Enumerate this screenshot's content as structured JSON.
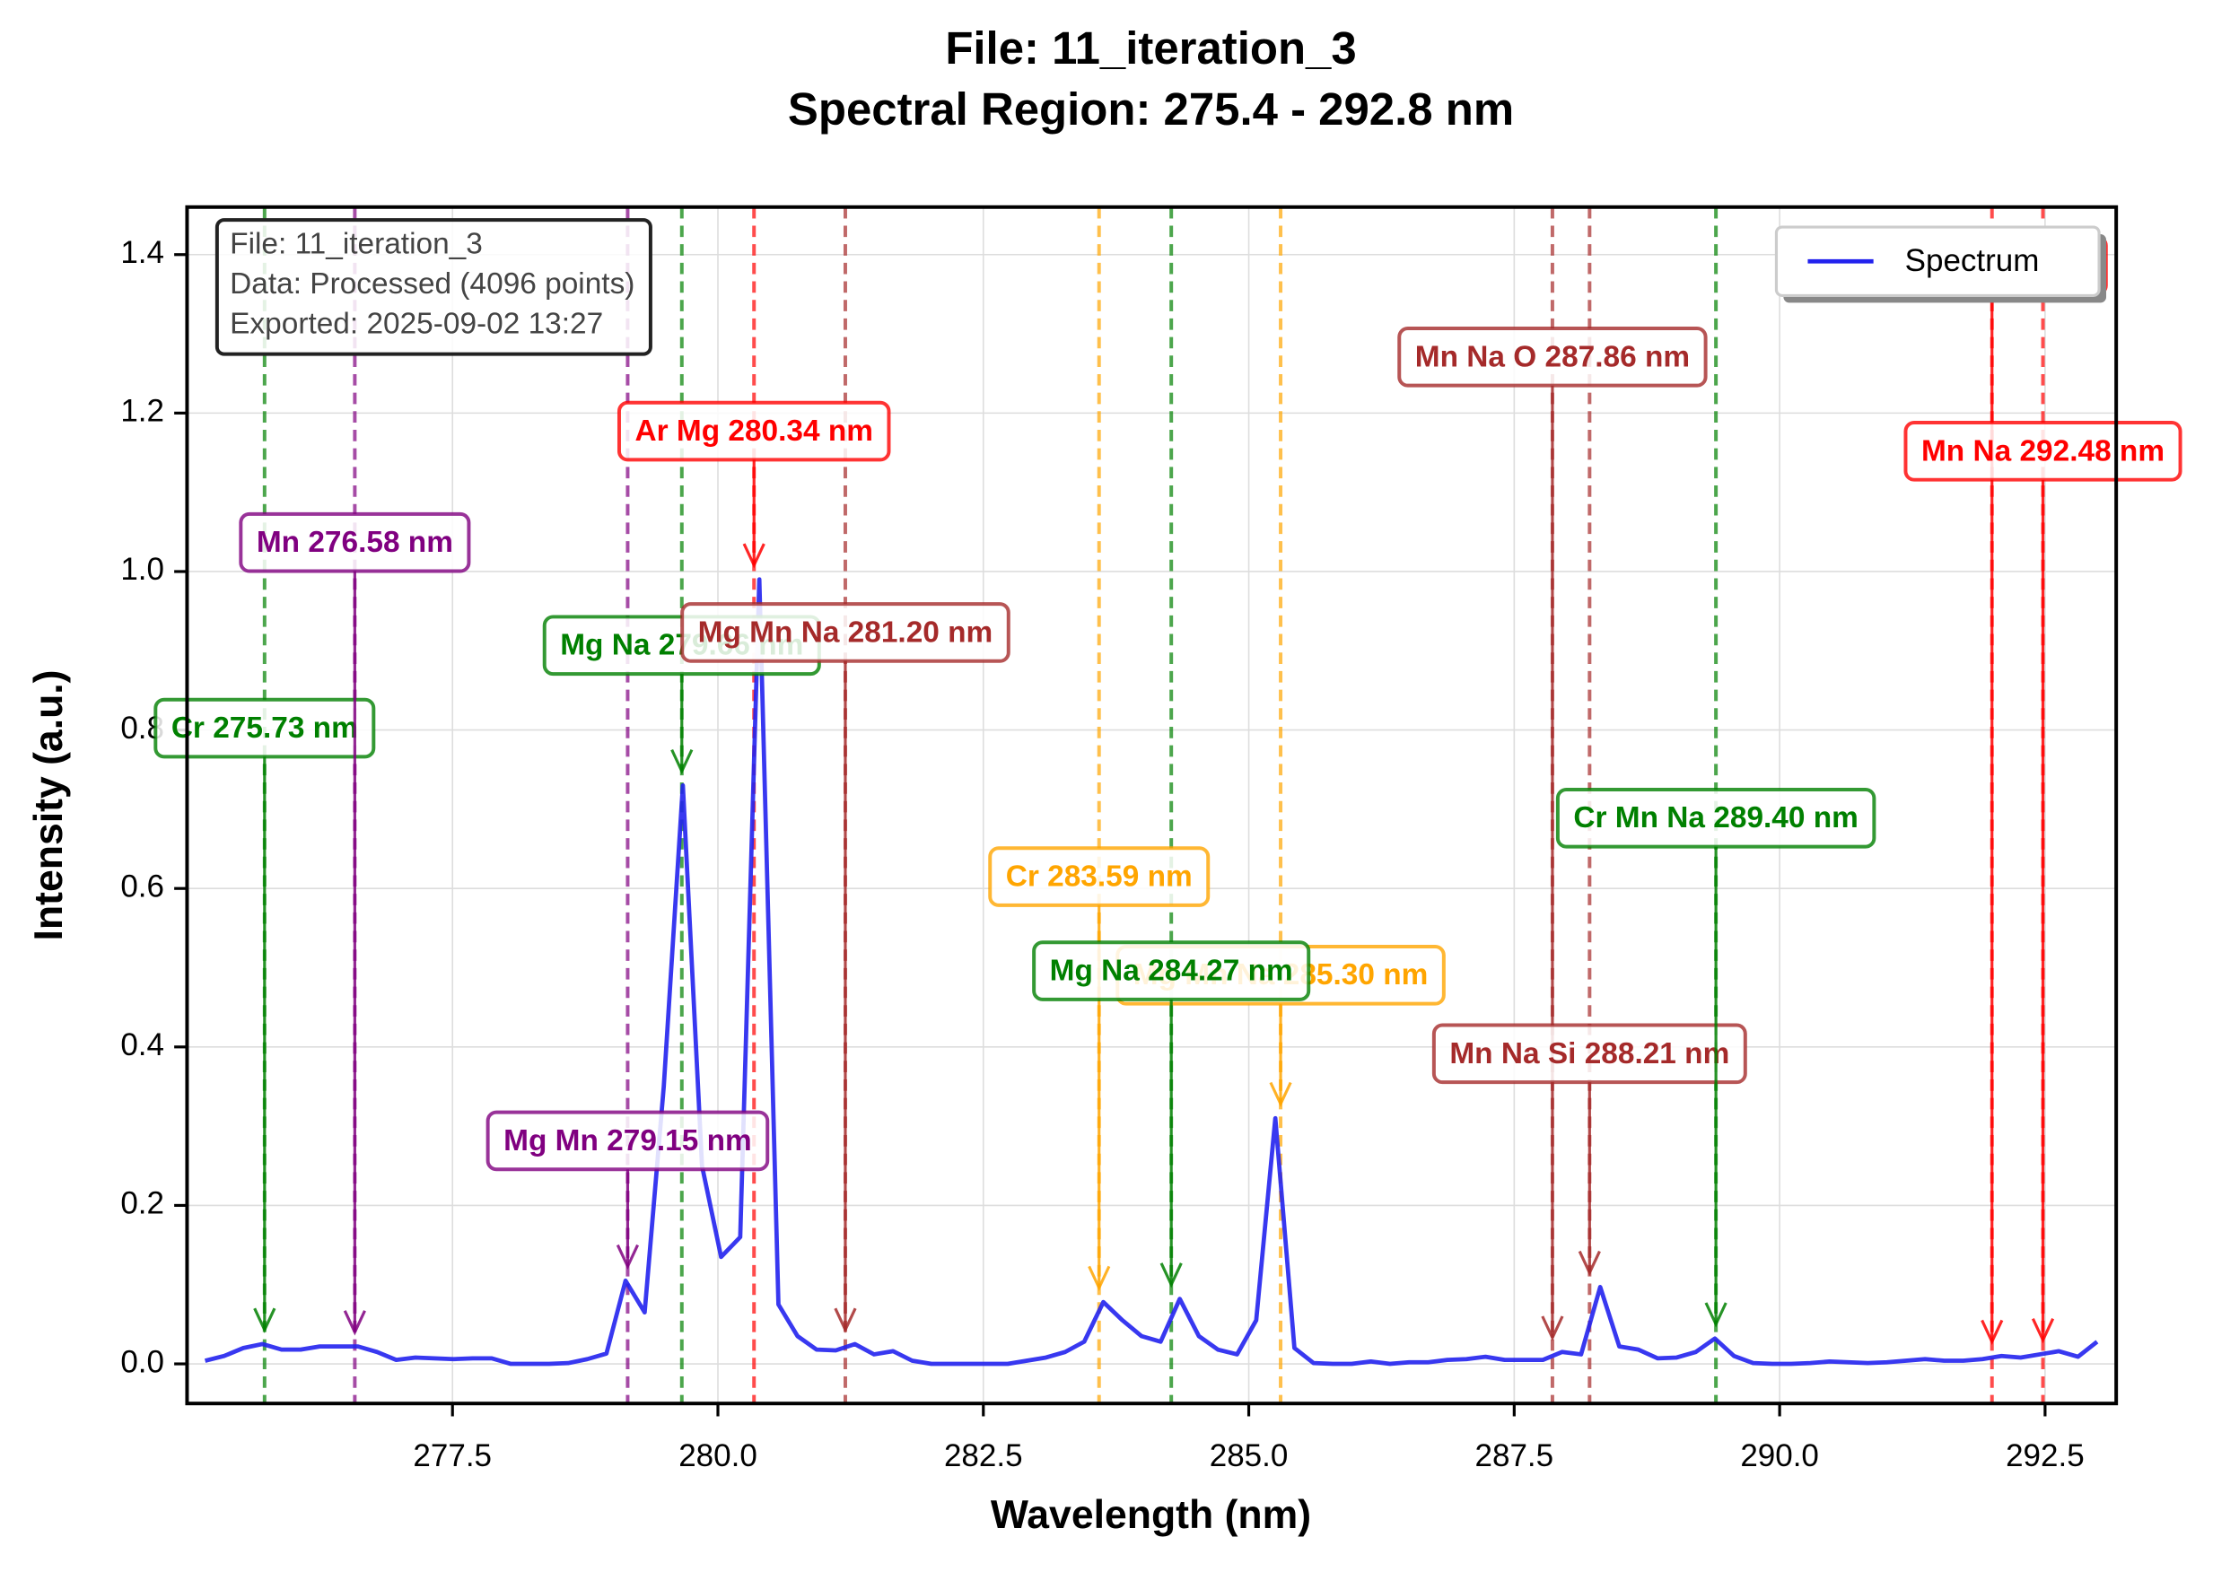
{
  "chart_data": {
    "type": "line",
    "title": "File: 11_iteration_3",
    "subtitle": "Spectral Region: 275.4 - 292.8 nm",
    "xlabel": "Wavelength (nm)",
    "ylabel": "Intensity (a.u.)",
    "xlim": [
      275.0,
      293.17
    ],
    "ylim": [
      -0.05,
      1.46
    ],
    "xticks": [
      277.5,
      {
        "value": 280,
        "label": "280.0"
      },
      282.5,
      {
        "value": 285,
        "label": "285.0"
      },
      287.5,
      {
        "value": 290,
        "label": "290.0"
      },
      292.5
    ],
    "yticks": [
      {
        "value": 0,
        "label": "0.0"
      },
      0.2,
      0.4,
      0.6,
      0.8,
      {
        "value": 1,
        "label": "1.0"
      },
      1.2,
      1.4
    ],
    "grid": true,
    "legend": "upper right",
    "x": [
      275.17,
      275.35,
      275.53,
      275.71,
      275.89,
      276.07,
      276.25,
      276.43,
      276.61,
      276.79,
      276.97,
      277.15,
      277.33,
      277.51,
      277.69,
      277.87,
      278.05,
      278.23,
      278.41,
      278.59,
      278.77,
      278.95,
      279.13,
      279.31,
      279.49,
      279.67,
      279.85,
      280.03,
      280.21,
      280.39,
      280.57,
      280.75,
      280.93,
      281.11,
      281.29,
      281.47,
      281.65,
      281.83,
      282.01,
      282.19,
      282.37,
      282.55,
      282.73,
      282.91,
      283.09,
      283.27,
      283.45,
      283.63,
      283.81,
      283.99,
      284.17,
      284.35,
      284.53,
      284.71,
      284.89,
      285.07,
      285.25,
      285.43,
      285.61,
      285.79,
      285.97,
      286.15,
      286.33,
      286.51,
      286.69,
      286.87,
      287.05,
      287.23,
      287.41,
      287.59,
      287.77,
      287.95,
      288.13,
      288.31,
      288.49,
      288.67,
      288.85,
      289.03,
      289.21,
      289.39,
      289.57,
      289.75,
      289.93,
      290.11,
      290.29,
      290.47,
      290.65,
      290.83,
      291.01,
      291.19,
      291.37,
      291.55,
      291.73,
      291.91,
      292.09,
      292.27,
      292.45,
      292.63,
      292.81,
      292.99
    ],
    "series": [
      {
        "name": "Spectrum",
        "color": "#2222ee",
        "values": [
          0.004,
          0.01,
          0.02,
          0.025,
          0.018,
          0.018,
          0.022,
          0.022,
          0.022,
          0.015,
          0.005,
          0.008,
          0.007,
          0.006,
          0.007,
          0.007,
          0,
          0,
          0,
          0.001,
          0.006,
          0.013,
          0.105,
          0.065,
          0.35,
          0.73,
          0.25,
          0.135,
          0.16,
          0.99,
          0.075,
          0.035,
          0.018,
          0.017,
          0.025,
          0.012,
          0.016,
          0.004,
          0,
          0,
          0,
          0,
          0,
          0.004,
          0.008,
          0.015,
          0.028,
          0.078,
          0.055,
          0.035,
          0.028,
          0.082,
          0.035,
          0.018,
          0.012,
          0.055,
          0.31,
          0.02,
          0.001,
          0,
          0,
          0.003,
          0,
          0.002,
          0.002,
          0.005,
          0.006,
          0.009,
          0.005,
          0.005,
          0.005,
          0.015,
          0.012,
          0.097,
          0.022,
          0.018,
          0.007,
          0.008,
          0.015,
          0.032,
          0.01,
          0.001,
          0,
          0,
          0.001,
          0.003,
          0.002,
          0.001,
          0.002,
          0.004,
          0.006,
          0.004,
          0.004,
          0.006,
          0.01,
          0.008,
          0.012,
          0.016,
          0.009,
          0.028
        ]
      }
    ],
    "annotations": [
      {
        "text": "Cr 275.73 nm",
        "x": 275.73,
        "color": "#008000"
      },
      {
        "text": "Mn 276.58 nm",
        "x": 276.58,
        "color": "#800080"
      },
      {
        "text": "Mg Mn 279.15 nm",
        "x": 279.15,
        "color": "#800080"
      },
      {
        "text": "Mg Na 279.66 nm",
        "x": 279.66,
        "color": "#008000"
      },
      {
        "text": "Ar Mg 280.34 nm",
        "x": 280.34,
        "color": "#ff0000"
      },
      {
        "text": "Mg Mn Na 281.20 nm",
        "x": 281.2,
        "color": "#a52a2a"
      },
      {
        "text": "Cr 283.59 nm",
        "x": 283.59,
        "color": "#ffa500"
      },
      {
        "text": "Mg Mn Na 285.30 nm",
        "x": 285.3,
        "color": "#ffa500"
      },
      {
        "text": "Mg Na 284.27 nm",
        "x": 284.27,
        "color": "#008000"
      },
      {
        "text": "Mn Na O 287.86 nm",
        "x": 287.86,
        "color": "#a52a2a"
      },
      {
        "text": "Mn Na Si 288.21 nm",
        "x": 288.21,
        "color": "#a52a2a"
      },
      {
        "text": "Cr Mn Na 289.40 nm",
        "x": 289.4,
        "color": "#008000"
      },
      {
        "text": "Mn 292.00 nm",
        "x": 292.0,
        "color": "#ff0000"
      },
      {
        "text": "Mn Na 292.48 nm",
        "x": 292.48,
        "color": "#ff0000"
      }
    ],
    "info_box": [
      "File: 11_iteration_3",
      "Data: Processed (4096 points)",
      "Exported: 2025-09-02 13:27"
    ]
  }
}
